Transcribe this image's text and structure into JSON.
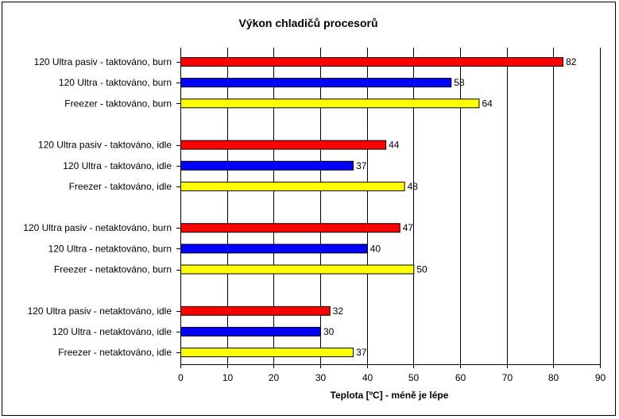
{
  "chart_data": {
    "type": "bar",
    "orientation": "horizontal",
    "title": "Výkon chladičů procesorů",
    "xlabel": "Teplota [ºC] - méně je lépe",
    "ylabel": "",
    "xlim": [
      0,
      90
    ],
    "xticks": [
      "0",
      "10",
      "20",
      "30",
      "40",
      "50",
      "60",
      "70",
      "80",
      "90"
    ],
    "grid": true,
    "legend": "none",
    "groups": [
      {
        "bars": [
          {
            "label": "120 Ultra pasiv - taktováno, burn",
            "value": 82,
            "color": "#ff0000"
          },
          {
            "label": "120 Ultra - taktováno, burn",
            "value": 58,
            "color": "#0000ff"
          },
          {
            "label": "Freezer - taktováno, burn",
            "value": 64,
            "color": "#ffff00"
          }
        ]
      },
      {
        "bars": [
          {
            "label": "120 Ultra pasiv - taktováno, idle",
            "value": 44,
            "color": "#ff0000"
          },
          {
            "label": "120 Ultra - taktováno, idle",
            "value": 37,
            "color": "#0000ff"
          },
          {
            "label": "Freezer - taktováno, idle",
            "value": 48,
            "color": "#ffff00"
          }
        ]
      },
      {
        "bars": [
          {
            "label": "120 Ultra pasiv - netaktováno, burn",
            "value": 47,
            "color": "#ff0000"
          },
          {
            "label": "120 Ultra - netaktováno, burn",
            "value": 40,
            "color": "#0000ff"
          },
          {
            "label": "Freezer - netaktováno, burn",
            "value": 50,
            "color": "#ffff00"
          }
        ]
      },
      {
        "bars": [
          {
            "label": "120 Ultra pasiv - netaktováno, idle",
            "value": 32,
            "color": "#ff0000"
          },
          {
            "label": "120 Ultra - netaktováno, idle",
            "value": 30,
            "color": "#0000ff"
          },
          {
            "label": "Freezer - netaktováno, idle",
            "value": 37,
            "color": "#ffff00"
          }
        ]
      }
    ]
  }
}
